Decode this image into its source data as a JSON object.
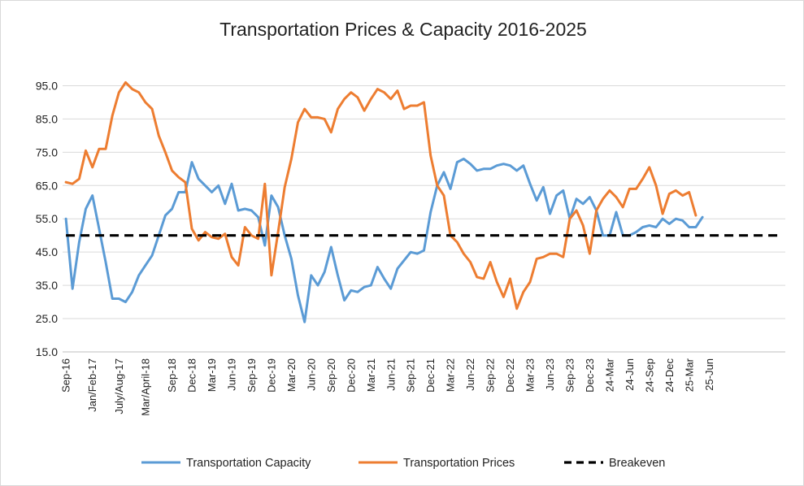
{
  "chart_data": {
    "type": "line",
    "title": "Transportation Prices & Capacity 2016-2025",
    "ylim": [
      15,
      100
    ],
    "yticks": [
      "15.0",
      "25.0",
      "35.0",
      "45.0",
      "55.0",
      "65.0",
      "75.0",
      "85.0",
      "95.0"
    ],
    "ytick_values": [
      15,
      25,
      35,
      45,
      55,
      65,
      75,
      85,
      95
    ],
    "grid": "horizontal",
    "legend_position": "bottom",
    "x_count": 109,
    "x_ticks": [
      {
        "index": 0,
        "label": "Sep-16"
      },
      {
        "index": 4,
        "label": "Jan/Feb-17"
      },
      {
        "index": 8,
        "label": "July/Aug-17"
      },
      {
        "index": 12,
        "label": "Mar/April-18"
      },
      {
        "index": 16,
        "label": "Sep-18"
      },
      {
        "index": 19,
        "label": "Dec-18"
      },
      {
        "index": 22,
        "label": "Mar-19"
      },
      {
        "index": 25,
        "label": "Jun-19"
      },
      {
        "index": 28,
        "label": "Sep-19"
      },
      {
        "index": 31,
        "label": "Dec-19"
      },
      {
        "index": 34,
        "label": "Mar-20"
      },
      {
        "index": 37,
        "label": "Jun-20"
      },
      {
        "index": 40,
        "label": "Sep-20"
      },
      {
        "index": 43,
        "label": "Dec-20"
      },
      {
        "index": 46,
        "label": "Mar-21"
      },
      {
        "index": 49,
        "label": "Jun-21"
      },
      {
        "index": 52,
        "label": "Sep-21"
      },
      {
        "index": 55,
        "label": "Dec-21"
      },
      {
        "index": 58,
        "label": "Mar-22"
      },
      {
        "index": 61,
        "label": "Jun-22"
      },
      {
        "index": 64,
        "label": "Sep-22"
      },
      {
        "index": 67,
        "label": "Dec-22"
      },
      {
        "index": 70,
        "label": "Mar-23"
      },
      {
        "index": 73,
        "label": "Jun-23"
      },
      {
        "index": 76,
        "label": "Sep-23"
      },
      {
        "index": 79,
        "label": "Dec-23"
      },
      {
        "index": 82,
        "label": "24-Mar"
      },
      {
        "index": 85,
        "label": "24-Jun"
      },
      {
        "index": 88,
        "label": "24-Sep"
      },
      {
        "index": 91,
        "label": "24-Dec"
      },
      {
        "index": 94,
        "label": "25-Mar"
      },
      {
        "index": 97,
        "label": "25-Jun"
      }
    ],
    "series": [
      {
        "name": "Transportation Capacity",
        "color": "#5B9BD5",
        "values": [
          55,
          34,
          48,
          58,
          62,
          52,
          42,
          31,
          31,
          30,
          33,
          38,
          41,
          44,
          50,
          56,
          58,
          63,
          63,
          72,
          67,
          65,
          63,
          65,
          59.5,
          65.5,
          57.5,
          58,
          57.5,
          55.5,
          47,
          62,
          58.5,
          50,
          43,
          32,
          24,
          38,
          35,
          39,
          46.5,
          38,
          30.5,
          33.5,
          33,
          34.5,
          35,
          40.5,
          37,
          34,
          40,
          42.5,
          45,
          44.5,
          45.5,
          57,
          65,
          69,
          64,
          72,
          73,
          71.5,
          69.5,
          70,
          70,
          71,
          71.5,
          71,
          69.5,
          71,
          65.5,
          60.5,
          64.5,
          56.5,
          62,
          63.5,
          55,
          61,
          59.5,
          61.5,
          57.5,
          50,
          50,
          57,
          50,
          50,
          51,
          52.5,
          53,
          52.5,
          55,
          53.5,
          55,
          54.5,
          52.5,
          52.5,
          55.5
        ]
      },
      {
        "name": "Transportation Prices",
        "color": "#ED7D31",
        "values": [
          66,
          65.5,
          67,
          75.5,
          70.5,
          76,
          76,
          86,
          93,
          96,
          94,
          93,
          90,
          88,
          80,
          75,
          69.5,
          67.5,
          66,
          52,
          48.5,
          51,
          49.5,
          49,
          50.5,
          43.5,
          41,
          52.5,
          50,
          49,
          65.5,
          38,
          51,
          64.5,
          73,
          84,
          88,
          85.5,
          85.5,
          85,
          81,
          88,
          91,
          93,
          91.5,
          87.5,
          91,
          94,
          93,
          91,
          93.5,
          88,
          89,
          89,
          90,
          74,
          65,
          62,
          50,
          48,
          44.5,
          42,
          37.5,
          37,
          42,
          36,
          31.5,
          37,
          28,
          33,
          36,
          43,
          43.5,
          44.5,
          44.5,
          43.5,
          55,
          57.5,
          53,
          44.5,
          57.5,
          61,
          63.5,
          61.5,
          58.5,
          64,
          64,
          67,
          70.5,
          65,
          56.5,
          62.5,
          63.5,
          62,
          63,
          56
        ]
      },
      {
        "name": "Breakeven",
        "color": "#000000",
        "dashed": true,
        "constant": 50
      }
    ]
  }
}
